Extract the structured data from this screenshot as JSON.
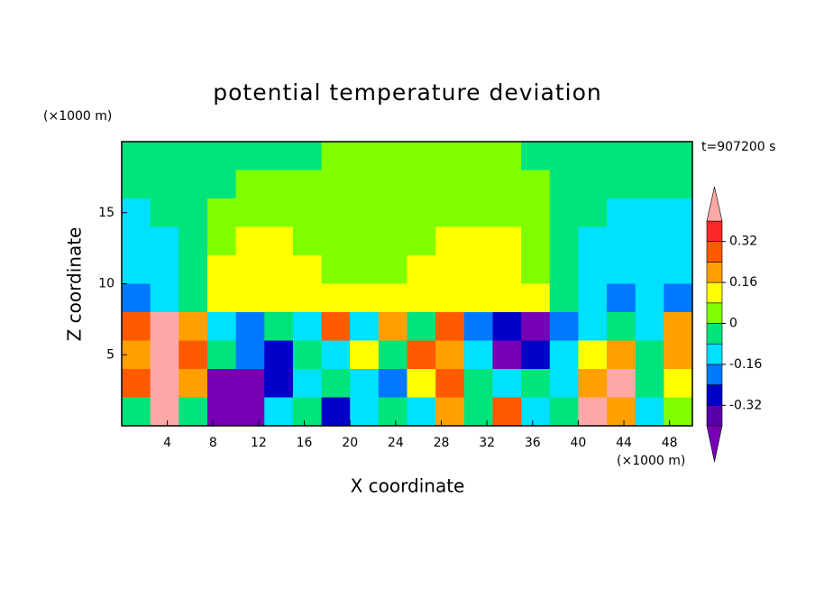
{
  "chart_data": {
    "type": "contour",
    "title": "potential temperature deviation",
    "subtitle": "t=907200 s",
    "x_label": "X coordinate",
    "y_label": "Z coordinate",
    "x_unit": "(×1000 m)",
    "y_unit": "(×1000 m)",
    "xlim": [
      0,
      50
    ],
    "ylim": [
      0,
      20
    ],
    "xticks": [
      4,
      8,
      12,
      16,
      20,
      24,
      28,
      32,
      36,
      40,
      44,
      48
    ],
    "yticks": [
      5,
      10,
      15
    ],
    "levels": [
      -0.4,
      -0.32,
      -0.24,
      -0.16,
      -0.08,
      0,
      0.08,
      0.16,
      0.24,
      0.32,
      0.4
    ],
    "colors": [
      "#7800b4",
      "#5a00a8",
      "#0000c8",
      "#0078ff",
      "#00e0ff",
      "#00e47c",
      "#80ff00",
      "#ffff00",
      "#ffa000",
      "#ff5a00",
      "#ff2828",
      "#ffa8a8"
    ],
    "colorbar_ticks": [
      -0.32,
      -0.16,
      0,
      0.16,
      0.32
    ],
    "x": [
      1.25,
      3.75,
      6.25,
      8.75,
      11.25,
      13.75,
      16.25,
      18.75,
      21.25,
      23.75,
      26.25,
      28.75,
      31.25,
      33.75,
      36.25,
      38.75,
      41.25,
      43.75,
      46.25,
      48.75
    ],
    "y": [
      19,
      17,
      15,
      13,
      11,
      9,
      7,
      5,
      3,
      1
    ],
    "z": [
      [
        -0.04,
        -0.04,
        -0.04,
        -0.04,
        -0.04,
        -0.04,
        -0.04,
        0.04,
        0.04,
        0.04,
        0.04,
        0.04,
        0.04,
        0.04,
        -0.04,
        -0.04,
        -0.04,
        -0.04,
        -0.04,
        -0.04
      ],
      [
        -0.04,
        -0.04,
        -0.04,
        -0.04,
        0.04,
        0.04,
        0.04,
        0.04,
        0.04,
        0.04,
        0.04,
        0.04,
        0.04,
        0.04,
        0.04,
        -0.04,
        -0.04,
        -0.04,
        -0.04,
        -0.04
      ],
      [
        -0.12,
        -0.04,
        -0.04,
        0.04,
        0.04,
        0.04,
        0.04,
        0.04,
        0.04,
        0.04,
        0.04,
        0.04,
        0.04,
        0.04,
        0.04,
        -0.04,
        -0.04,
        -0.12,
        -0.12,
        -0.12
      ],
      [
        -0.12,
        -0.12,
        -0.04,
        0.04,
        0.12,
        0.12,
        0.04,
        0.04,
        0.04,
        0.04,
        0.04,
        0.12,
        0.12,
        0.12,
        0.04,
        -0.04,
        -0.12,
        -0.12,
        -0.12,
        -0.12
      ],
      [
        -0.12,
        -0.12,
        -0.04,
        0.12,
        0.12,
        0.12,
        0.12,
        0.04,
        0.04,
        0.04,
        0.12,
        0.12,
        0.12,
        0.12,
        0.04,
        -0.04,
        -0.12,
        -0.12,
        -0.12,
        -0.12
      ],
      [
        -0.2,
        -0.12,
        -0.04,
        0.12,
        0.12,
        0.12,
        0.12,
        0.12,
        0.12,
        0.12,
        0.12,
        0.12,
        0.12,
        0.12,
        0.12,
        -0.04,
        -0.12,
        -0.2,
        -0.12,
        -0.2
      ],
      [
        0.28,
        0.45,
        0.2,
        -0.12,
        -0.2,
        -0.04,
        -0.12,
        0.28,
        -0.12,
        0.2,
        -0.04,
        0.28,
        -0.2,
        -0.28,
        -0.45,
        -0.2,
        -0.12,
        -0.04,
        -0.12,
        0.2
      ],
      [
        0.2,
        0.45,
        0.28,
        -0.04,
        -0.2,
        -0.28,
        -0.04,
        -0.12,
        0.12,
        -0.04,
        0.28,
        0.2,
        -0.12,
        -0.45,
        -0.28,
        -0.12,
        0.12,
        0.2,
        -0.04,
        0.2
      ],
      [
        0.28,
        0.45,
        0.2,
        -0.45,
        -0.45,
        -0.28,
        -0.12,
        -0.04,
        -0.12,
        -0.2,
        0.12,
        0.28,
        -0.04,
        -0.12,
        -0.04,
        -0.12,
        0.2,
        0.45,
        -0.04,
        0.12
      ],
      [
        -0.04,
        0.45,
        -0.04,
        -0.45,
        -0.45,
        -0.12,
        -0.04,
        -0.28,
        -0.12,
        -0.04,
        -0.12,
        0.2,
        -0.04,
        0.28,
        -0.12,
        -0.04,
        0.45,
        0.2,
        -0.12,
        0.04
      ]
    ]
  }
}
